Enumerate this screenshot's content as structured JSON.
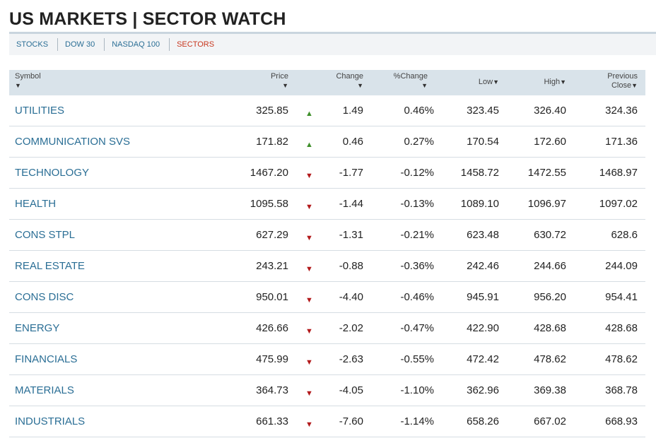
{
  "page": {
    "title": "US MARKETS | SECTOR WATCH"
  },
  "tabs": [
    {
      "label": "STOCKS",
      "active": false
    },
    {
      "label": "DOW 30",
      "active": false
    },
    {
      "label": "NASDAQ 100",
      "active": false
    },
    {
      "label": "SECTORS",
      "active": true
    }
  ],
  "colors": {
    "link": "#2a6e95",
    "active_tab": "#c8371e",
    "up": "#3f8f2b",
    "down": "#b2191b",
    "header_bg": "#d9e3ea"
  },
  "table": {
    "headers": {
      "symbol": "Symbol",
      "price": "Price",
      "change": "Change",
      "pct_change": "%Change",
      "low": "Low",
      "high": "High",
      "prev_line1": "Previous",
      "prev_line2": "Close",
      "sort_glyph": "▼"
    },
    "rows": [
      {
        "symbol": "UTILITIES",
        "price": "325.85",
        "dir": "up",
        "arrow": "▲",
        "change": "1.49",
        "pct": "0.46%",
        "low": "323.45",
        "high": "326.40",
        "prev": "324.36"
      },
      {
        "symbol": "COMMUNICATION SVS",
        "price": "171.82",
        "dir": "up",
        "arrow": "▲",
        "change": "0.46",
        "pct": "0.27%",
        "low": "170.54",
        "high": "172.60",
        "prev": "171.36"
      },
      {
        "symbol": "TECHNOLOGY",
        "price": "1467.20",
        "dir": "down",
        "arrow": "▼",
        "change": "-1.77",
        "pct": "-0.12%",
        "low": "1458.72",
        "high": "1472.55",
        "prev": "1468.97"
      },
      {
        "symbol": "HEALTH",
        "price": "1095.58",
        "dir": "down",
        "arrow": "▼",
        "change": "-1.44",
        "pct": "-0.13%",
        "low": "1089.10",
        "high": "1096.97",
        "prev": "1097.02"
      },
      {
        "symbol": "CONS STPL",
        "price": "627.29",
        "dir": "down",
        "arrow": "▼",
        "change": "-1.31",
        "pct": "-0.21%",
        "low": "623.48",
        "high": "630.72",
        "prev": "628.6"
      },
      {
        "symbol": "REAL ESTATE",
        "price": "243.21",
        "dir": "down",
        "arrow": "▼",
        "change": "-0.88",
        "pct": "-0.36%",
        "low": "242.46",
        "high": "244.66",
        "prev": "244.09"
      },
      {
        "symbol": "CONS DISC",
        "price": "950.01",
        "dir": "down",
        "arrow": "▼",
        "change": "-4.40",
        "pct": "-0.46%",
        "low": "945.91",
        "high": "956.20",
        "prev": "954.41"
      },
      {
        "symbol": "ENERGY",
        "price": "426.66",
        "dir": "down",
        "arrow": "▼",
        "change": "-2.02",
        "pct": "-0.47%",
        "low": "422.90",
        "high": "428.68",
        "prev": "428.68"
      },
      {
        "symbol": "FINANCIALS",
        "price": "475.99",
        "dir": "down",
        "arrow": "▼",
        "change": "-2.63",
        "pct": "-0.55%",
        "low": "472.42",
        "high": "478.62",
        "prev": "478.62"
      },
      {
        "symbol": "MATERIALS",
        "price": "364.73",
        "dir": "down",
        "arrow": "▼",
        "change": "-4.05",
        "pct": "-1.10%",
        "low": "362.96",
        "high": "369.38",
        "prev": "368.78"
      },
      {
        "symbol": "INDUSTRIALS",
        "price": "661.33",
        "dir": "down",
        "arrow": "▼",
        "change": "-7.60",
        "pct": "-1.14%",
        "low": "658.26",
        "high": "667.02",
        "prev": "668.93"
      }
    ]
  }
}
